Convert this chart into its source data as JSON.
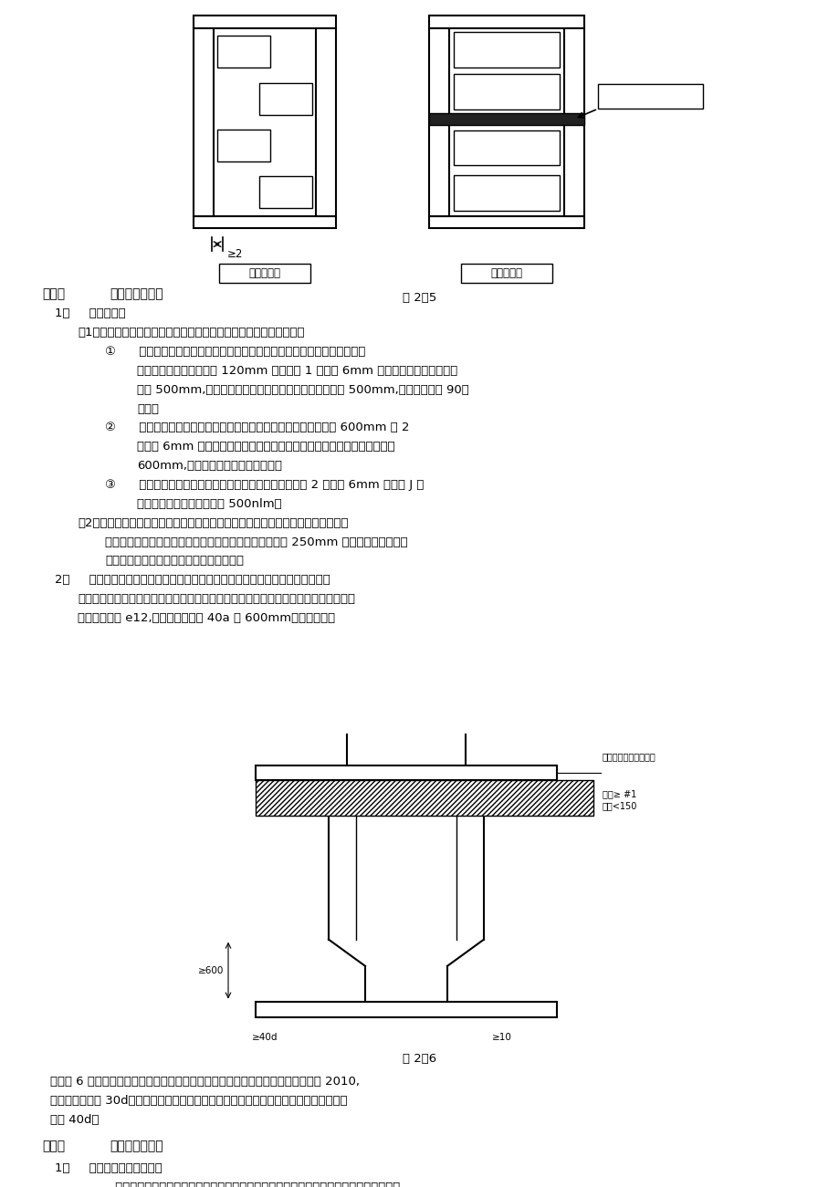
{
  "bg_color": "#ffffff",
  "text_color": "#000000",
  "fig25_caption": "图 2＇5",
  "fig26_caption": "图 2＇6",
  "section3_title": "（三）    施工洞构造要求",
  "section4_title": "（四）  施工洞填筑方法",
  "body_lines": [
    {
      "indent": 1,
      "text": "1、     砖体结构。"
    },
    {
      "indent": 2,
      "text": "（1）在砖体上留施工洞时，洞口顶部必须设置过梁。洞口构造如下："
    },
    {
      "indent": 3,
      "text": "①      烧结普通粘土砖墙：洞口两侧需留成直摐，但必须做成凸摐，并加设拉"
    },
    {
      "indent": 4,
      "text": "结筋，拉结筋的数量为每 120mm 墙厚放置 1 根直径 6mm 的钉筋，间距沿墙高不得"
    },
    {
      "indent": 4,
      "text": "超过 500mm,埋入长度从墙的留摐处算起，每边均不小于 500mm,钉筋末端应有 90。"
    },
    {
      "indent": 4,
      "text": "弯钉。"
    },
    {
      "indent": 3,
      "text": "②      混凝土空心砖块墙：在洞顶部设置混凝土过梁。洞口两侧每隔 600mm 设 2"
    },
    {
      "indent": 4,
      "text": "根直径 6mm 的拉结筋。拉结筋埋入长度，从留摐处算起，每边均不应小于"
    },
    {
      "indent": 4,
      "text": "600mm,钉筋外露部分不得任意弯折。"
    },
    {
      "indent": 3,
      "text": "③      加气混凝土（粉煤琅）砖块墙：施工洞口上部应放置 2 根直径 6mm 的钉筋 J 申"
    },
    {
      "indent": 4,
      "text": "过洞口两边长度每边不小于 500nlm。"
    },
    {
      "indent": 2,
      "text": "（2）过梁的设置。过梁的形式有：砖筑钉筋砖过梁、实心破半拱式过梁、现浇或预"
    },
    {
      "indent": 3,
      "text": "制混凝土过梁。选择过梁长度时，一定要保证每边不小于 250mm 的支承长度。过梁的"
    },
    {
      "indent": 3,
      "text": "断面尺寸及配筋一定要经过计算方能确定。"
    },
    {
      "indent": 1,
      "text": "2、     钉筋混凝土结构。在钉筋混凝土墙上留施工洞，在无暗框架时，洞顶必须设"
    },
    {
      "indent": 2,
      "text": "置过梁，其钉筋应按计算配置，并应征得设计人员同意。并不得低于下述构造要求，在"
    },
    {
      "indent": 2,
      "text": "八度区不少于 e12,锹固长度不少于 40a 和 600mm。箍筋直径最"
    }
  ],
  "bottom_text_lines": [
    "小为巾 6 纵向钉筋端头，如下图所示。洞口两侧应设置竖向构造钉筋，每边不少于 2010,",
    "锹固长度不少于 30d。洞口处原墙体水平、竖向配筋应断开，断开长度（即外露长度）不",
    "小于 40d。"
  ],
  "section4_lines": [
    "1、     砖体墙体洞口的填筑：",
    "     填砖临时洞口时，应清除墙面粘结的砂浆、泥浆和杂物，并洒水湿演，再用与原墙相同的"
  ]
}
